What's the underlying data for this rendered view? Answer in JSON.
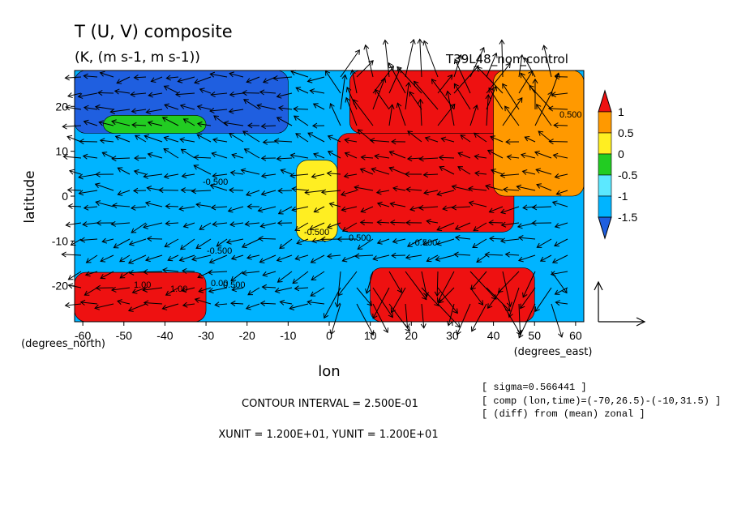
{
  "chart_data": {
    "type": "heatmap",
    "title": "T (U, V) composite",
    "subtitle": "(K, (m s-1, m s-1))",
    "run_label": "T39L48_non_control",
    "xlabel": "lon",
    "ylabel": "latitude",
    "x_unit_note": "(degrees_east)",
    "y_unit_note": "(degrees_north)",
    "xlim": [
      -62,
      62
    ],
    "ylim": [
      -28,
      28
    ],
    "x_ticks": [
      -60,
      -50,
      -40,
      -30,
      -20,
      -10,
      0,
      10,
      20,
      30,
      40,
      50,
      60
    ],
    "y_ticks": [
      -20,
      -10,
      0,
      10,
      20
    ],
    "grid": false,
    "colorbar": {
      "position": "right",
      "levels": [
        "-1.5",
        "-1",
        "-0.5",
        "0",
        "0.5",
        "1"
      ],
      "colors": [
        "#1f5fe0",
        "#00b4ff",
        "#5ce8ff",
        "#22cc22",
        "#ffee22",
        "#ff9900",
        "#ee1111"
      ]
    },
    "contour_labels": [
      "-0.500",
      "-0.500",
      "-0.500",
      "-0.500",
      "0.500",
      "1.00",
      "1.00",
      "0.500",
      "0.00",
      "0.500"
    ],
    "reference_vector": {
      "xunit": 12,
      "yunit": 12
    },
    "field_regions": [
      {
        "lon": [
          -62,
          62
        ],
        "lat": [
          -28,
          28
        ],
        "value": -1.2
      },
      {
        "lon": [
          -62,
          -10
        ],
        "lat": [
          14,
          28
        ],
        "value": -1.6
      },
      {
        "lon": [
          -8,
          2
        ],
        "lat": [
          -10,
          8
        ],
        "value": 0.3
      },
      {
        "lon": [
          2,
          45
        ],
        "lat": [
          -8,
          14
        ],
        "value": 1.2
      },
      {
        "lon": [
          5,
          45
        ],
        "lat": [
          14,
          28
        ],
        "value": 1.2
      },
      {
        "lon": [
          10,
          50
        ],
        "lat": [
          -28,
          -16
        ],
        "value": 1.2
      },
      {
        "lon": [
          -62,
          -30
        ],
        "lat": [
          -28,
          -17
        ],
        "value": 1.2
      },
      {
        "lon": [
          40,
          62
        ],
        "lat": [
          0,
          28
        ],
        "value": 0.6
      },
      {
        "lon": [
          -55,
          -30
        ],
        "lat": [
          14,
          18
        ],
        "value": -0.4
      }
    ]
  },
  "footer": {
    "contour_interval": "CONTOUR INTERVAL = 2.500E-01",
    "units": "XUNIT = 1.200E+01, YUNIT = 1.200E+01"
  },
  "info_box": [
    "[ sigma=0.566441 ]",
    "[ comp (lon,time)=(-70,26.5)-(-10,31.5) ]",
    "[ (diff) from (mean) zonal ]"
  ]
}
